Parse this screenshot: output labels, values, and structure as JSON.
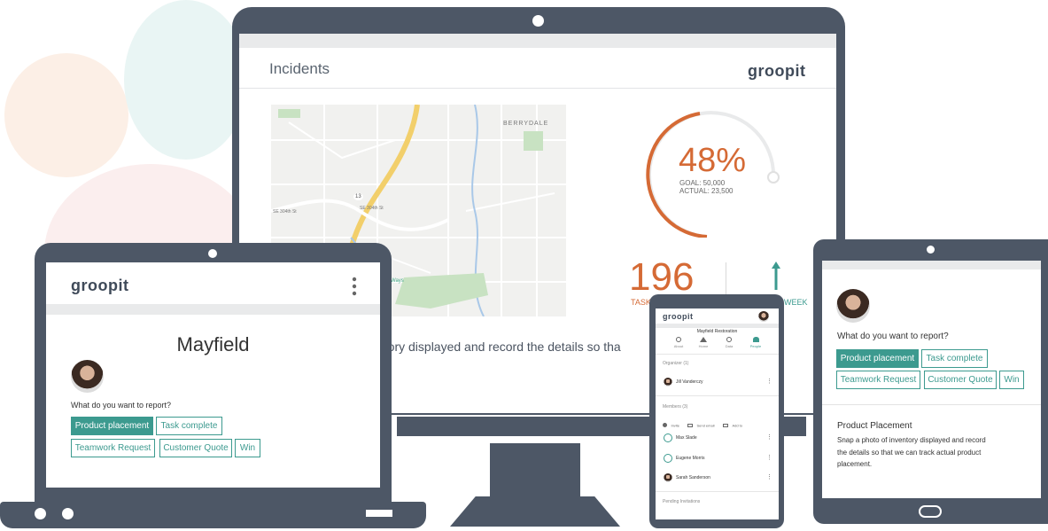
{
  "colors": {
    "device": "#4d5766",
    "accent": "#3c9a8f",
    "orange": "#d56a35",
    "text": "#3f4a59"
  },
  "monitor": {
    "page_title": "Incidents",
    "logo": "groopit",
    "gauge": {
      "percent": "48%",
      "goal": "GOAL: 50,000",
      "actual": "ACTUAL: 23,500",
      "fraction": 0.48
    },
    "stat_value": "196",
    "stat_label": "TASK",
    "week_label": "WEEK",
    "map_labels": {
      "area": "BERRYDALE",
      "route": "13",
      "road1": "SE 304th St",
      "road2": "SE 304th St",
      "park": "Ways"
    },
    "caption": "ntory displayed and record the details so tha"
  },
  "laptop": {
    "logo": "groopit",
    "menu_icon": "more-vertical-icon",
    "title": "Mayfield",
    "question": "What do you want to report?",
    "buttons": [
      "Product placement",
      "Task complete",
      "Teamwork Request",
      "Customer Quote",
      "Win"
    ]
  },
  "phone": {
    "logo": "groopit",
    "group_title": "Mayfield Restoration",
    "tabs": [
      "About",
      "Home",
      "Data",
      "People"
    ],
    "organizer_header": "Organizer (1)",
    "organizer": "Jill Vanderczy",
    "members_header": "Members (3)",
    "actions": [
      "Invite",
      "Send email",
      "Add to"
    ],
    "members": [
      "Max Slade",
      "Eugene Morris",
      "Sarah Sanderson"
    ],
    "pending": "Pending Invitations"
  },
  "tablet": {
    "question": "What do you want to report?",
    "buttons": [
      "Product placement",
      "Task complete",
      "Teamwork Request",
      "Customer Quote",
      "Win"
    ],
    "section_title": "Product Placement",
    "description_lines": [
      "Snap a photo of inventory displayed and record",
      "the details so that we can track actual product",
      "placement."
    ]
  }
}
